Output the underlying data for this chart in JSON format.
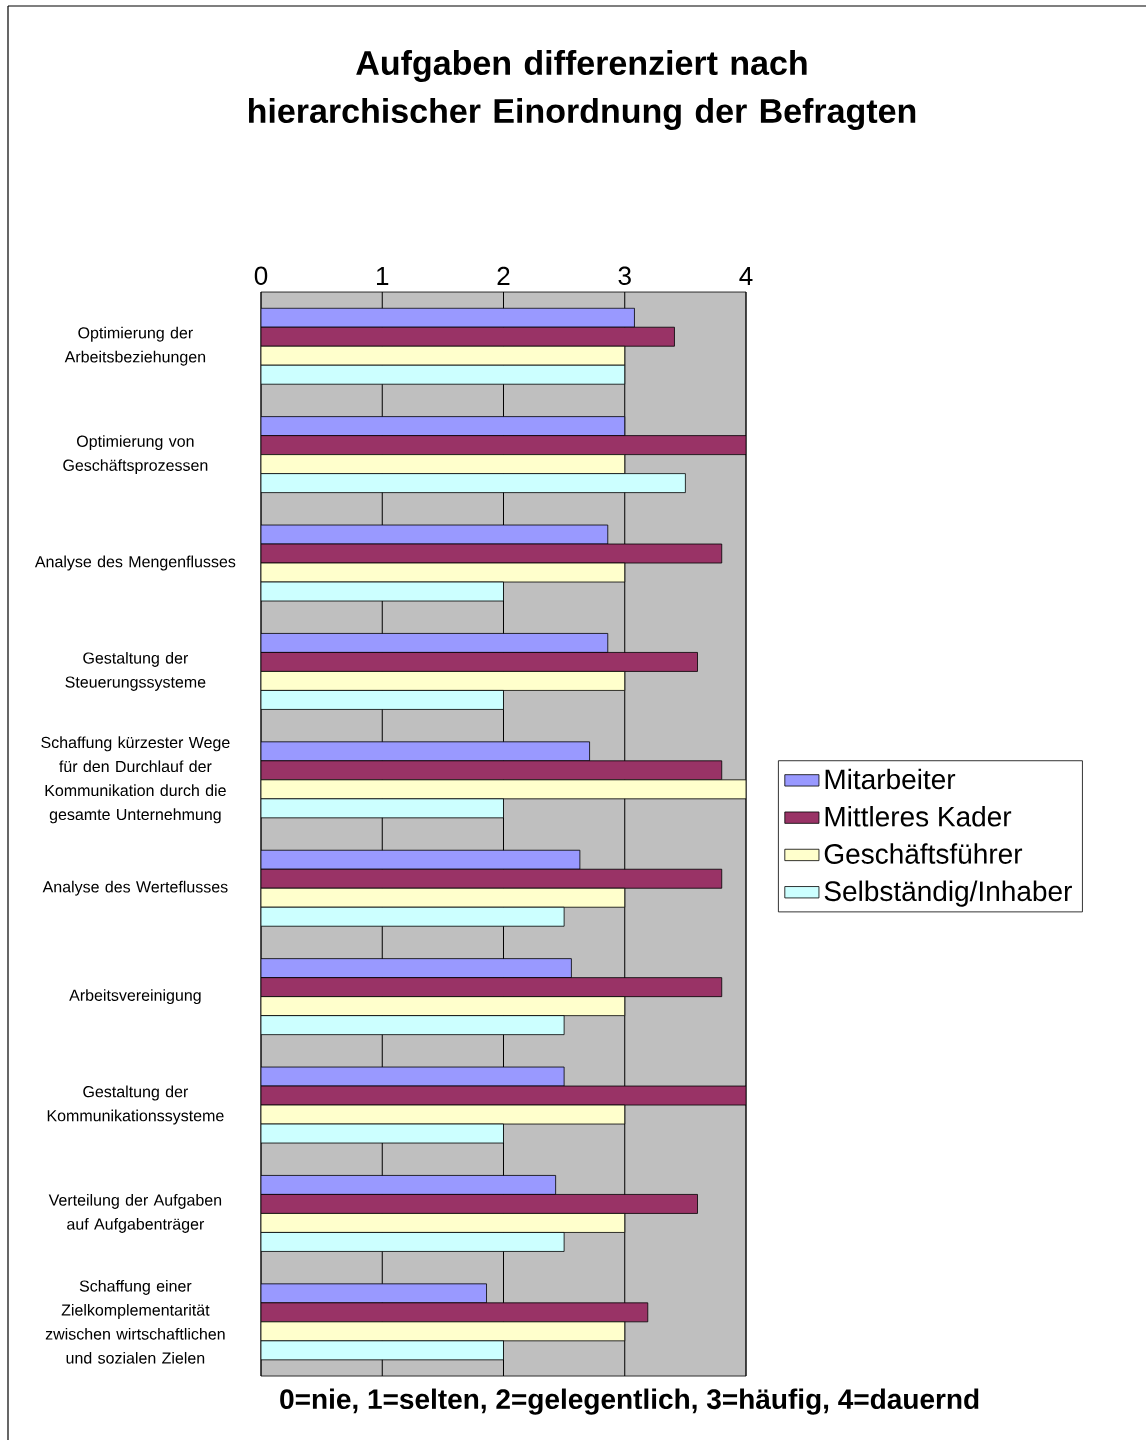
{
  "chart_data": {
    "type": "bar",
    "orientation": "horizontal",
    "title": "Aufgaben differenziert nach hierarchischer Einordnung der Befragten",
    "xlabel": "0=nie, 1=selten, 2=gelegentlich, 3=häufig, 4=dauernd",
    "categories": [
      "Optimierung der Arbeitsbeziehungen",
      "Optimierung von Geschäftsprozessen",
      "Analyse des Mengenflusses",
      "Gestaltung der Steuerungssysteme",
      "Schaffung kürzester Wege für den Durchlauf der Kommunikation durch die gesamte Unternehmung",
      "Analyse des Werteflusses",
      "Arbeitsvereinigung",
      "Gestaltung der Kommunikationssysteme",
      "Verteilung der Aufgaben auf Aufgabenträger",
      "Schaffung einer Zielkomplementarität zwischen wirtschaftlichen und sozialen Zielen"
    ],
    "series": [
      {
        "name": "Mitarbeiter",
        "color": "#9999ff",
        "values": [
          3.08,
          3.0,
          2.86,
          2.86,
          2.71,
          2.63,
          2.56,
          2.5,
          2.43,
          1.86
        ]
      },
      {
        "name": "Mittleres Kader",
        "color": "#993366",
        "values": [
          3.41,
          4.0,
          3.8,
          3.6,
          3.8,
          3.8,
          3.8,
          4.0,
          3.6,
          3.19
        ]
      },
      {
        "name": "Geschäftsführer",
        "color": "#ffffcc",
        "values": [
          3.0,
          3.0,
          3.0,
          3.0,
          4.0,
          3.0,
          3.0,
          3.0,
          3.0,
          3.0
        ]
      },
      {
        "name": "Selbständig/Inhaber",
        "color": "#ccffff",
        "values": [
          3.0,
          3.5,
          2.0,
          2.0,
          2.0,
          2.5,
          2.5,
          2.0,
          2.5,
          2.0
        ]
      }
    ],
    "xlim": [
      0,
      4
    ],
    "xticks": [
      0,
      1,
      2,
      3,
      4
    ],
    "grid": "x",
    "legend": "right"
  }
}
